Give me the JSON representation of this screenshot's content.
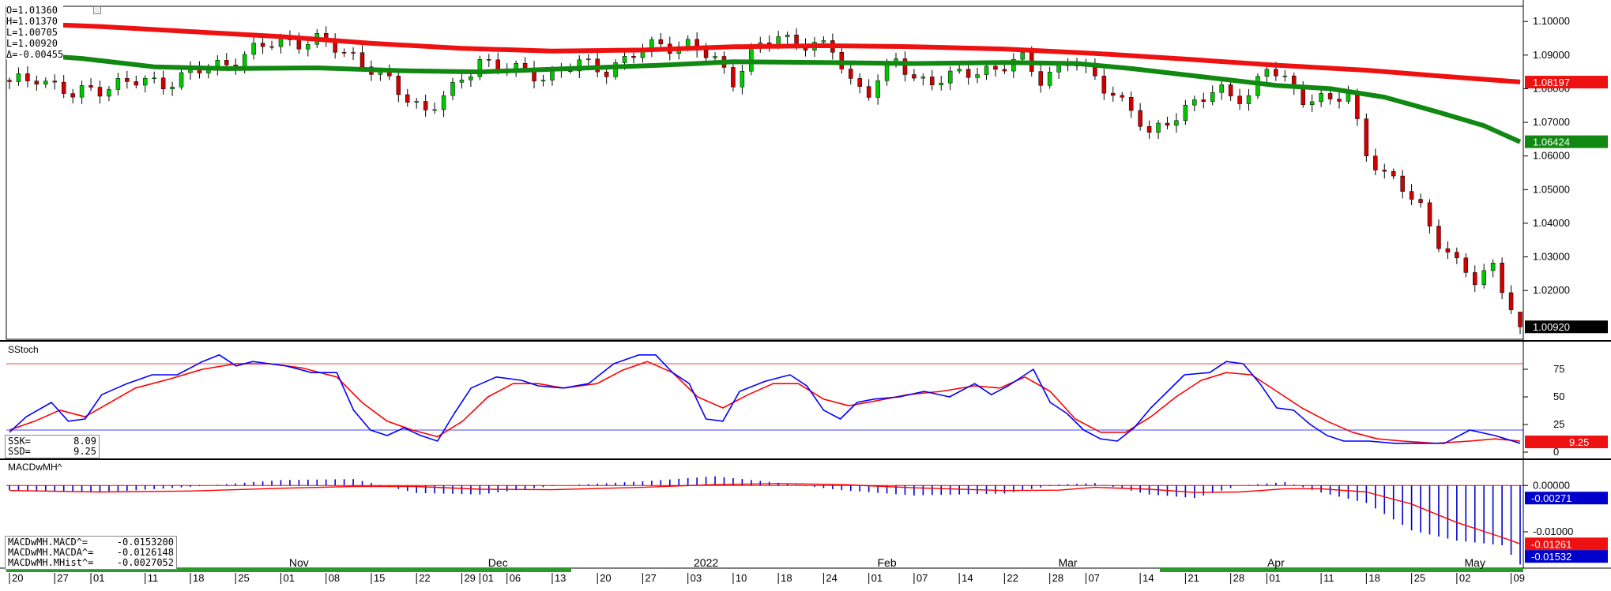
{
  "ohlc_readout": {
    "open": "O=1.01360",
    "high": "H=1.01370",
    "low": "L=1.00705",
    "last": "L=1.00920",
    "change": "Δ=-0.00455"
  },
  "colors": {
    "up_candle": "#00c800",
    "down_candle": "#d00000",
    "ma_fast": "#ee1111",
    "ma_slow": "#118811",
    "stoch_k": "#0000ff",
    "stoch_d": "#ff0000",
    "macd_hist": "#0000cc",
    "macd_signal": "#ff0000",
    "last_price_bg": "#000000"
  },
  "price_panel": {
    "y_ticks": [
      "1.10000",
      "1.09000",
      "1.08000",
      "1.07000",
      "1.06000",
      "1.05000",
      "1.04000",
      "1.03000",
      "1.02000"
    ],
    "y_tick_values": [
      1.1,
      1.09,
      1.08,
      1.07,
      1.06,
      1.05,
      1.04,
      1.03,
      1.02
    ],
    "ylim": [
      1.0055,
      1.1045
    ],
    "badges": [
      {
        "label": "1.08197",
        "value": 1.08197,
        "color": "#ee1111"
      },
      {
        "label": "1.06424",
        "value": 1.06424,
        "color": "#118811"
      },
      {
        "label": "1.00920",
        "value": 1.0092,
        "color": "#000000"
      }
    ]
  },
  "stoch_panel": {
    "title": "SStoch",
    "y_ticks": [
      "75",
      "50",
      "25",
      "0"
    ],
    "y_tick_values": [
      75,
      50,
      25,
      0
    ],
    "ylim": [
      -5,
      100
    ],
    "upper_line": 80,
    "lower_line": 20,
    "badge": {
      "label": "9.25",
      "value": 9.25
    },
    "readout": [
      {
        "name": "SSK=",
        "value": "8.09"
      },
      {
        "name": "SSD=",
        "value": "9.25"
      }
    ]
  },
  "macd_panel": {
    "title": "MACDwMH^",
    "y_ticks": [
      "0.00000",
      "-0.01000"
    ],
    "y_tick_values": [
      0.0,
      -0.01
    ],
    "ylim": [
      -0.0175,
      0.0055
    ],
    "badges": [
      {
        "label": "-0.00271",
        "value": -0.00271,
        "color": "#0000cc"
      },
      {
        "label": "-0.01261",
        "value": -0.01261,
        "color": "#ee1111"
      },
      {
        "label": "-0.01532",
        "value": -0.01532,
        "color": "#0000cc"
      }
    ],
    "readout": [
      {
        "name": "MACDwMH.MACD^=",
        "value": "-0.0153200"
      },
      {
        "name": "MACDwMH.MACDA^=",
        "value": "-0.0126148"
      },
      {
        "name": "MACDwMH.MHist^=",
        "value": "-0.0027052"
      }
    ]
  },
  "chart_data": {
    "type": "candlestick",
    "x_day_ticks": [
      {
        "i": 0,
        "label": "20"
      },
      {
        "i": 5,
        "label": "27"
      },
      {
        "i": 9,
        "label": "01"
      },
      {
        "i": 15,
        "label": "11"
      },
      {
        "i": 20,
        "label": "18"
      },
      {
        "i": 25,
        "label": "25"
      },
      {
        "i": 30,
        "label": "01"
      },
      {
        "i": 35,
        "label": "08"
      },
      {
        "i": 40,
        "label": "15"
      },
      {
        "i": 45,
        "label": "22"
      },
      {
        "i": 50,
        "label": "29"
      },
      {
        "i": 52,
        "label": "01"
      },
      {
        "i": 55,
        "label": "06"
      },
      {
        "i": 60,
        "label": "13"
      },
      {
        "i": 65,
        "label": "20"
      },
      {
        "i": 70,
        "label": "27"
      },
      {
        "i": 75,
        "label": "03"
      },
      {
        "i": 80,
        "label": "10"
      },
      {
        "i": 85,
        "label": "18"
      },
      {
        "i": 90,
        "label": "24"
      },
      {
        "i": 95,
        "label": "01"
      },
      {
        "i": 100,
        "label": "07"
      },
      {
        "i": 105,
        "label": "14"
      },
      {
        "i": 110,
        "label": "22"
      },
      {
        "i": 115,
        "label": "28"
      },
      {
        "i": 119,
        "label": "07"
      },
      {
        "i": 125,
        "label": "14"
      },
      {
        "i": 130,
        "label": "21"
      },
      {
        "i": 135,
        "label": "28"
      },
      {
        "i": 139,
        "label": "01"
      },
      {
        "i": 145,
        "label": "11"
      },
      {
        "i": 150,
        "label": "18"
      },
      {
        "i": 155,
        "label": "25"
      },
      {
        "i": 160,
        "label": "02"
      },
      {
        "i": 166,
        "label": "09"
      }
    ],
    "x_major_labels": [
      {
        "i": 32,
        "label": "Nov"
      },
      {
        "i": 54,
        "label": "Dec"
      },
      {
        "i": 77,
        "label": "2022"
      },
      {
        "i": 97,
        "label": "Feb"
      },
      {
        "i": 117,
        "label": "Mar"
      },
      {
        "i": 140,
        "label": "Apr"
      },
      {
        "i": 162,
        "label": "May"
      }
    ],
    "close_path": [
      [
        0,
        1.081
      ],
      [
        3,
        1.084
      ],
      [
        7,
        1.0775
      ],
      [
        9,
        1.08
      ],
      [
        12,
        1.0815
      ],
      [
        17,
        1.082
      ],
      [
        22,
        1.086
      ],
      [
        26,
        1.09
      ],
      [
        30,
        1.0945
      ],
      [
        34,
        1.094
      ],
      [
        38,
        1.09
      ],
      [
        40,
        1.086
      ],
      [
        43,
        1.079
      ],
      [
        46,
        1.074
      ],
      [
        49,
        1.079
      ],
      [
        52,
        1.089
      ],
      [
        56,
        1.085
      ],
      [
        59,
        1.084
      ],
      [
        63,
        1.087
      ],
      [
        66,
        1.086
      ],
      [
        69,
        1.09
      ],
      [
        72,
        1.0935
      ],
      [
        75,
        1.093
      ],
      [
        78,
        1.088
      ],
      [
        80,
        1.083
      ],
      [
        82,
        1.091
      ],
      [
        85,
        1.095
      ],
      [
        88,
        1.094
      ],
      [
        91,
        1.091
      ],
      [
        93,
        1.082
      ],
      [
        95,
        1.08
      ],
      [
        98,
        1.088
      ],
      [
        100,
        1.083
      ],
      [
        104,
        1.083
      ],
      [
        108,
        1.086
      ],
      [
        112,
        1.088
      ],
      [
        114,
        1.083
      ],
      [
        117,
        1.0885
      ],
      [
        120,
        1.083
      ],
      [
        122,
        1.079
      ],
      [
        124,
        1.074
      ],
      [
        126,
        1.065
      ],
      [
        128,
        1.071
      ],
      [
        131,
        1.076
      ],
      [
        134,
        1.079
      ],
      [
        137,
        1.078
      ],
      [
        139,
        1.086
      ],
      [
        141,
        1.082
      ],
      [
        143,
        1.078
      ],
      [
        146,
        1.076
      ],
      [
        148,
        1.078
      ],
      [
        150,
        1.062
      ],
      [
        152,
        1.054
      ],
      [
        154,
        1.05
      ],
      [
        156,
        1.045
      ],
      [
        158,
        1.035
      ],
      [
        160,
        1.027
      ],
      [
        162,
        1.023
      ],
      [
        164,
        1.028
      ],
      [
        166,
        1.015
      ],
      [
        167,
        1.0092
      ]
    ],
    "series": [
      {
        "name": "SSK",
        "path": [
          [
            0,
            18
          ],
          [
            2,
            32
          ],
          [
            5,
            45
          ],
          [
            7,
            28
          ],
          [
            9,
            30
          ],
          [
            11,
            52
          ],
          [
            14,
            62
          ],
          [
            17,
            70
          ],
          [
            20,
            70
          ],
          [
            23,
            82
          ],
          [
            25,
            88
          ],
          [
            27,
            78
          ],
          [
            29,
            82
          ],
          [
            31,
            80
          ],
          [
            33,
            78
          ],
          [
            36,
            72
          ],
          [
            39,
            72
          ],
          [
            41,
            38
          ],
          [
            43,
            20
          ],
          [
            45,
            15
          ],
          [
            47,
            22
          ],
          [
            49,
            15
          ],
          [
            51,
            10
          ],
          [
            53,
            35
          ],
          [
            55,
            58
          ],
          [
            58,
            68
          ],
          [
            61,
            65
          ],
          [
            63,
            60
          ],
          [
            66,
            58
          ],
          [
            69,
            62
          ],
          [
            72,
            80
          ],
          [
            75,
            88
          ],
          [
            77,
            88
          ],
          [
            79,
            72
          ],
          [
            81,
            62
          ],
          [
            83,
            30
          ],
          [
            85,
            28
          ],
          [
            87,
            55
          ],
          [
            90,
            64
          ],
          [
            93,
            70
          ],
          [
            95,
            60
          ],
          [
            97,
            38
          ],
          [
            99,
            30
          ],
          [
            101,
            45
          ],
          [
            103,
            48
          ],
          [
            106,
            50
          ],
          [
            109,
            55
          ],
          [
            112,
            50
          ],
          [
            115,
            62
          ],
          [
            117,
            52
          ],
          [
            119,
            60
          ],
          [
            122,
            75
          ],
          [
            124,
            45
          ],
          [
            126,
            35
          ],
          [
            128,
            20
          ],
          [
            130,
            12
          ],
          [
            132,
            10
          ],
          [
            134,
            22
          ],
          [
            136,
            40
          ],
          [
            138,
            55
          ],
          [
            140,
            70
          ],
          [
            143,
            72
          ],
          [
            145,
            82
          ],
          [
            147,
            80
          ],
          [
            149,
            62
          ],
          [
            151,
            40
          ],
          [
            153,
            38
          ],
          [
            155,
            25
          ],
          [
            157,
            15
          ],
          [
            159,
            10
          ],
          [
            162,
            10
          ],
          [
            165,
            8
          ],
          [
            168,
            8
          ],
          [
            171,
            8
          ],
          [
            174,
            20
          ],
          [
            177,
            15
          ],
          [
            180,
            8
          ]
        ]
      },
      {
        "name": "SSD",
        "path": [
          [
            0,
            20
          ],
          [
            3,
            28
          ],
          [
            6,
            38
          ],
          [
            9,
            32
          ],
          [
            12,
            45
          ],
          [
            15,
            58
          ],
          [
            19,
            66
          ],
          [
            23,
            75
          ],
          [
            27,
            80
          ],
          [
            31,
            80
          ],
          [
            35,
            76
          ],
          [
            39,
            68
          ],
          [
            42,
            45
          ],
          [
            45,
            28
          ],
          [
            48,
            20
          ],
          [
            51,
            14
          ],
          [
            54,
            28
          ],
          [
            57,
            50
          ],
          [
            60,
            62
          ],
          [
            63,
            62
          ],
          [
            66,
            58
          ],
          [
            70,
            62
          ],
          [
            73,
            74
          ],
          [
            76,
            82
          ],
          [
            79,
            72
          ],
          [
            82,
            50
          ],
          [
            85,
            40
          ],
          [
            88,
            52
          ],
          [
            91,
            62
          ],
          [
            94,
            62
          ],
          [
            97,
            48
          ],
          [
            100,
            42
          ],
          [
            103,
            46
          ],
          [
            107,
            52
          ],
          [
            111,
            55
          ],
          [
            115,
            60
          ],
          [
            118,
            58
          ],
          [
            121,
            68
          ],
          [
            124,
            55
          ],
          [
            127,
            30
          ],
          [
            130,
            18
          ],
          [
            133,
            18
          ],
          [
            136,
            32
          ],
          [
            139,
            50
          ],
          [
            142,
            65
          ],
          [
            145,
            72
          ],
          [
            148,
            70
          ],
          [
            151,
            55
          ],
          [
            154,
            40
          ],
          [
            157,
            28
          ],
          [
            160,
            18
          ],
          [
            163,
            12
          ],
          [
            166,
            10
          ],
          [
            170,
            8
          ],
          [
            174,
            10
          ],
          [
            177,
            12
          ],
          [
            180,
            10
          ]
        ]
      }
    ],
    "macd_path": [
      [
        0,
        -0.0012
      ],
      [
        10,
        -0.0016
      ],
      [
        20,
        -0.0011
      ],
      [
        30,
        -0.0002
      ],
      [
        38,
        0.0002
      ],
      [
        45,
        -0.0006
      ],
      [
        52,
        -0.0012
      ],
      [
        60,
        -0.0008
      ],
      [
        70,
        -0.0001
      ],
      [
        78,
        0.0007
      ],
      [
        85,
        0.0005
      ],
      [
        92,
        -0.0001
      ],
      [
        100,
        -0.001
      ],
      [
        110,
        -0.0014
      ],
      [
        116,
        -0.0008
      ],
      [
        120,
        -0.0002
      ],
      [
        126,
        -0.0012
      ],
      [
        131,
        -0.002
      ],
      [
        136,
        -0.0012
      ],
      [
        141,
        -0.0004
      ],
      [
        145,
        -0.001
      ],
      [
        150,
        -0.0022
      ],
      [
        155,
        -0.006
      ],
      [
        160,
        -0.01
      ],
      [
        165,
        -0.013
      ],
      [
        167,
        -0.0153
      ]
    ],
    "macd_signal_path": [
      [
        0,
        -0.0011
      ],
      [
        10,
        -0.0014
      ],
      [
        20,
        -0.0012
      ],
      [
        30,
        -0.0006
      ],
      [
        38,
        -0.0002
      ],
      [
        45,
        -0.0002
      ],
      [
        52,
        -0.0008
      ],
      [
        60,
        -0.0009
      ],
      [
        70,
        -0.0004
      ],
      [
        78,
        0.0002
      ],
      [
        85,
        0.0004
      ],
      [
        92,
        0.0002
      ],
      [
        100,
        -0.0005
      ],
      [
        110,
        -0.0011
      ],
      [
        116,
        -0.001
      ],
      [
        120,
        -0.0004
      ],
      [
        126,
        -0.0008
      ],
      [
        131,
        -0.0015
      ],
      [
        136,
        -0.0014
      ],
      [
        141,
        -0.0007
      ],
      [
        145,
        -0.0007
      ],
      [
        150,
        -0.0014
      ],
      [
        155,
        -0.004
      ],
      [
        160,
        -0.008
      ],
      [
        165,
        -0.0112
      ],
      [
        167,
        -0.0126
      ]
    ],
    "ma_fast_path": [
      [
        0,
        1.0995
      ],
      [
        10,
        1.0985
      ],
      [
        20,
        1.097
      ],
      [
        30,
        1.0955
      ],
      [
        40,
        1.0935
      ],
      [
        50,
        1.092
      ],
      [
        60,
        1.0912
      ],
      [
        70,
        1.0915
      ],
      [
        80,
        1.0925
      ],
      [
        90,
        1.0928
      ],
      [
        100,
        1.0925
      ],
      [
        110,
        1.0918
      ],
      [
        120,
        1.0905
      ],
      [
        130,
        1.0888
      ],
      [
        140,
        1.087
      ],
      [
        150,
        1.0855
      ],
      [
        158,
        1.0838
      ],
      [
        167,
        1.082
      ]
    ],
    "ma_slow_path": [
      [
        0,
        1.0905
      ],
      [
        8,
        1.089
      ],
      [
        16,
        1.0865
      ],
      [
        24,
        1.086
      ],
      [
        34,
        1.0862
      ],
      [
        44,
        1.0853
      ],
      [
        52,
        1.085
      ],
      [
        62,
        1.086
      ],
      [
        72,
        1.087
      ],
      [
        80,
        1.088
      ],
      [
        90,
        1.0878
      ],
      [
        100,
        1.0875
      ],
      [
        110,
        1.0878
      ],
      [
        118,
        1.0875
      ],
      [
        124,
        1.086
      ],
      [
        132,
        1.0835
      ],
      [
        140,
        1.081
      ],
      [
        146,
        1.08
      ],
      [
        152,
        1.0775
      ],
      [
        158,
        1.073
      ],
      [
        163,
        1.069
      ],
      [
        167,
        1.0642
      ]
    ],
    "ylim": [
      1.0055,
      1.1045
    ]
  }
}
